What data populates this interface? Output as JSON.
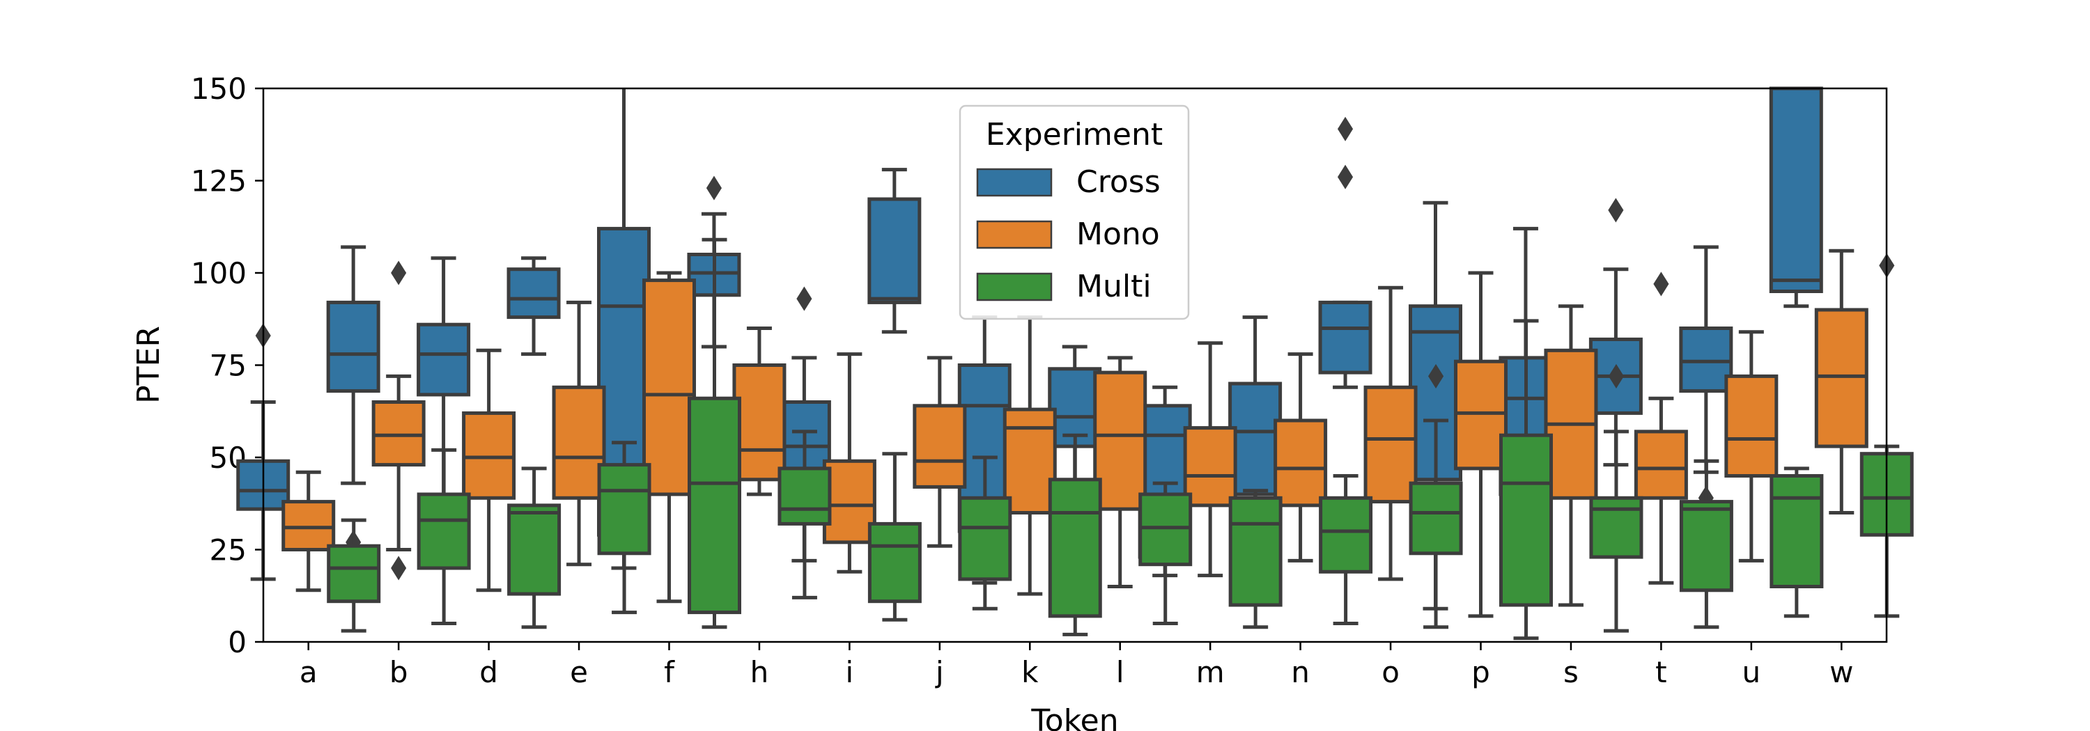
{
  "chart_data": {
    "type": "box",
    "xlabel": "Token",
    "ylabel": "PTER",
    "ylim": [
      0,
      150
    ],
    "yticks": [
      0,
      25,
      50,
      75,
      100,
      125,
      150
    ],
    "categories": [
      "a",
      "b",
      "d",
      "e",
      "f",
      "h",
      "i",
      "j",
      "k",
      "l",
      "m",
      "n",
      "o",
      "p",
      "s",
      "t",
      "u",
      "w"
    ],
    "legend": {
      "title": "Experiment",
      "placement": "top-center"
    },
    "series": [
      {
        "name": "Cross",
        "color": "#3274a1",
        "boxes": [
          {
            "whislo": 17,
            "q1": 36,
            "med": 41,
            "q3": 49,
            "whishi": 65,
            "fliers": [
              83
            ]
          },
          {
            "whislo": 43,
            "q1": 68,
            "med": 78,
            "q3": 92,
            "whishi": 107,
            "fliers": [
              27
            ]
          },
          {
            "whislo": 38,
            "q1": 67,
            "med": 78,
            "q3": 86,
            "whishi": 104,
            "fliers": []
          },
          {
            "whislo": 78,
            "q1": 88,
            "med": 93,
            "q3": 101,
            "whishi": 104,
            "fliers": [
              33
            ]
          },
          {
            "whislo": 20,
            "q1": 29,
            "med": 91,
            "q3": 112,
            "whishi": 150,
            "fliers": []
          },
          {
            "whislo": 80,
            "q1": 94,
            "med": 100,
            "q3": 105,
            "whishi": 116,
            "fliers": [
              123
            ]
          },
          {
            "whislo": 22,
            "q1": 47,
            "med": 53,
            "q3": 65,
            "whishi": 77,
            "fliers": [
              93
            ]
          },
          {
            "whislo": 84,
            "q1": 92,
            "med": 93,
            "q3": 120,
            "whishi": 128,
            "fliers": []
          },
          {
            "whislo": 16,
            "q1": 30,
            "med": 64,
            "q3": 75,
            "whishi": 88,
            "fliers": []
          },
          {
            "whislo": 38,
            "q1": 53,
            "med": 61,
            "q3": 74,
            "whishi": 80,
            "fliers": []
          },
          {
            "whislo": 18,
            "q1": 23,
            "med": 56,
            "q3": 64,
            "whishi": 69,
            "fliers": []
          },
          {
            "whislo": 35,
            "q1": 40,
            "med": 57,
            "q3": 70,
            "whishi": 88,
            "fliers": []
          },
          {
            "whislo": 69,
            "q1": 73,
            "med": 85,
            "q3": 92,
            "whishi": 92,
            "fliers": [
              139,
              126,
              34,
              31
            ]
          },
          {
            "whislo": 9,
            "q1": 44,
            "med": 84,
            "q3": 91,
            "whishi": 119,
            "fliers": []
          },
          {
            "whislo": 26,
            "q1": 40,
            "med": 66,
            "q3": 77,
            "whishi": 112,
            "fliers": []
          },
          {
            "whislo": 48,
            "q1": 62,
            "med": 72,
            "q3": 82,
            "whishi": 101,
            "fliers": [
              117,
              30
            ]
          },
          {
            "whislo": 46,
            "q1": 68,
            "med": 76,
            "q3": 85,
            "whishi": 107,
            "fliers": [
              39
            ]
          },
          {
            "whislo": 91,
            "q1": 95,
            "med": 98,
            "q3": 150,
            "whishi": 150,
            "fliers": []
          }
        ]
      },
      {
        "name": "Mono",
        "color": "#e1812c",
        "boxes": [
          {
            "whislo": 14,
            "q1": 25,
            "med": 31,
            "q3": 38,
            "whishi": 46,
            "fliers": []
          },
          {
            "whislo": 25,
            "q1": 48,
            "med": 56,
            "q3": 65,
            "whishi": 72,
            "fliers": [
              100,
              20
            ]
          },
          {
            "whislo": 14,
            "q1": 39,
            "med": 50,
            "q3": 62,
            "whishi": 79,
            "fliers": []
          },
          {
            "whislo": 21,
            "q1": 39,
            "med": 50,
            "q3": 69,
            "whishi": 92,
            "fliers": []
          },
          {
            "whislo": 11,
            "q1": 40,
            "med": 67,
            "q3": 98,
            "whishi": 100,
            "fliers": []
          },
          {
            "whislo": 40,
            "q1": 44,
            "med": 52,
            "q3": 75,
            "whishi": 85,
            "fliers": []
          },
          {
            "whislo": 19,
            "q1": 27,
            "med": 37,
            "q3": 49,
            "whishi": 78,
            "fliers": []
          },
          {
            "whislo": 26,
            "q1": 42,
            "med": 49,
            "q3": 64,
            "whishi": 77,
            "fliers": []
          },
          {
            "whislo": 13,
            "q1": 35,
            "med": 58,
            "q3": 63,
            "whishi": 88,
            "fliers": []
          },
          {
            "whislo": 15,
            "q1": 36,
            "med": 56,
            "q3": 73,
            "whishi": 77,
            "fliers": []
          },
          {
            "whislo": 18,
            "q1": 37,
            "med": 45,
            "q3": 58,
            "whishi": 81,
            "fliers": []
          },
          {
            "whislo": 22,
            "q1": 37,
            "med": 47,
            "q3": 60,
            "whishi": 78,
            "fliers": []
          },
          {
            "whislo": 17,
            "q1": 38,
            "med": 55,
            "q3": 69,
            "whishi": 96,
            "fliers": []
          },
          {
            "whislo": 7,
            "q1": 47,
            "med": 62,
            "q3": 76,
            "whishi": 100,
            "fliers": []
          },
          {
            "whislo": 10,
            "q1": 39,
            "med": 59,
            "q3": 79,
            "whishi": 91,
            "fliers": []
          },
          {
            "whislo": 16,
            "q1": 39,
            "med": 47,
            "q3": 57,
            "whishi": 66,
            "fliers": [
              97
            ]
          },
          {
            "whislo": 22,
            "q1": 45,
            "med": 55,
            "q3": 72,
            "whishi": 84,
            "fliers": []
          },
          {
            "whislo": 35,
            "q1": 53,
            "med": 72,
            "q3": 90,
            "whishi": 106,
            "fliers": []
          }
        ]
      },
      {
        "name": "Multi",
        "color": "#3a923a",
        "boxes": [
          {
            "whislo": 3,
            "q1": 11,
            "med": 20,
            "q3": 26,
            "whishi": 33,
            "fliers": []
          },
          {
            "whislo": 5,
            "q1": 20,
            "med": 33,
            "q3": 40,
            "whishi": 52,
            "fliers": []
          },
          {
            "whislo": 4,
            "q1": 13,
            "med": 35,
            "q3": 37,
            "whishi": 47,
            "fliers": []
          },
          {
            "whislo": 8,
            "q1": 24,
            "med": 41,
            "q3": 48,
            "whishi": 54,
            "fliers": []
          },
          {
            "whislo": 4,
            "q1": 8,
            "med": 43,
            "q3": 66,
            "whishi": 109,
            "fliers": []
          },
          {
            "whislo": 12,
            "q1": 32,
            "med": 36,
            "q3": 47,
            "whishi": 57,
            "fliers": []
          },
          {
            "whislo": 6,
            "q1": 11,
            "med": 26,
            "q3": 32,
            "whishi": 51,
            "fliers": []
          },
          {
            "whislo": 9,
            "q1": 17,
            "med": 31,
            "q3": 39,
            "whishi": 50,
            "fliers": []
          },
          {
            "whislo": 2,
            "q1": 7,
            "med": 35,
            "q3": 44,
            "whishi": 56,
            "fliers": []
          },
          {
            "whislo": 5,
            "q1": 21,
            "med": 31,
            "q3": 40,
            "whishi": 43,
            "fliers": []
          },
          {
            "whislo": 4,
            "q1": 10,
            "med": 32,
            "q3": 39,
            "whishi": 41,
            "fliers": []
          },
          {
            "whislo": 5,
            "q1": 19,
            "med": 30,
            "q3": 39,
            "whishi": 45,
            "fliers": []
          },
          {
            "whislo": 4,
            "q1": 24,
            "med": 35,
            "q3": 43,
            "whishi": 60,
            "fliers": [
              72
            ]
          },
          {
            "whislo": 1,
            "q1": 10,
            "med": 43,
            "q3": 56,
            "whishi": 87,
            "fliers": []
          },
          {
            "whislo": 3,
            "q1": 23,
            "med": 36,
            "q3": 39,
            "whishi": 57,
            "fliers": [
              72
            ]
          },
          {
            "whislo": 4,
            "q1": 14,
            "med": 36,
            "q3": 38,
            "whishi": 49,
            "fliers": []
          },
          {
            "whislo": 7,
            "q1": 15,
            "med": 39,
            "q3": 45,
            "whishi": 47,
            "fliers": []
          },
          {
            "whislo": 7,
            "q1": 29,
            "med": 39,
            "q3": 51,
            "whishi": 53,
            "fliers": [
              102
            ]
          }
        ]
      }
    ]
  }
}
